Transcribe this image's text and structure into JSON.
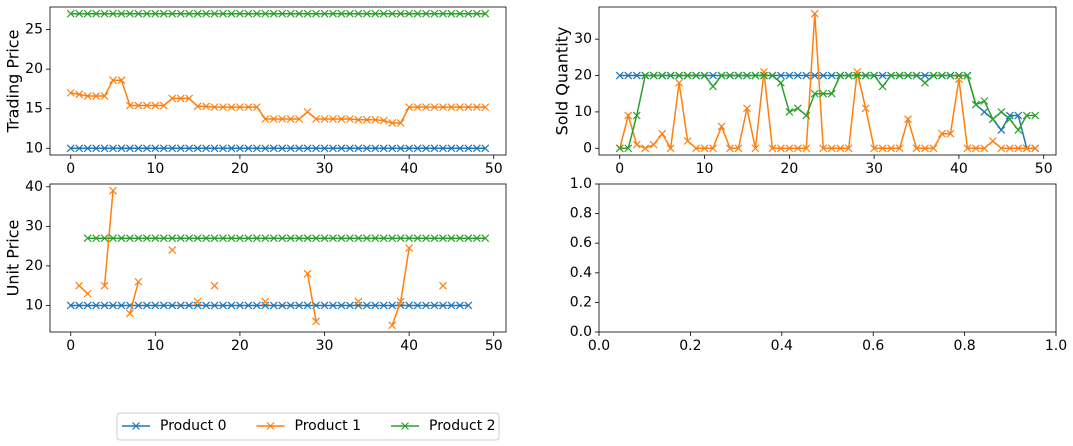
{
  "chart_data": [
    {
      "type": "line",
      "ylabel": "Trading Price",
      "xlim": [
        -2.45,
        51.45
      ],
      "ylim": [
        9.15,
        27.85
      ],
      "xticks": [
        0,
        10,
        20,
        30,
        40,
        50
      ],
      "yticks": [
        10,
        15,
        20,
        25
      ],
      "legend": "below",
      "series": [
        {
          "name": "Product 0",
          "color": "#1f77b4",
          "values": [
            10,
            10,
            10,
            10,
            10,
            10,
            10,
            10,
            10,
            10,
            10,
            10,
            10,
            10,
            10,
            10,
            10,
            10,
            10,
            10,
            10,
            10,
            10,
            10,
            10,
            10,
            10,
            10,
            10,
            10,
            10,
            10,
            10,
            10,
            10,
            10,
            10,
            10,
            10,
            10,
            10,
            10,
            10,
            10,
            10,
            10,
            10,
            10,
            10,
            10
          ]
        },
        {
          "name": "Product 1",
          "color": "#ff7f0e",
          "values": [
            17,
            16.8,
            16.6,
            16.6,
            16.6,
            18.6,
            18.6,
            15.4,
            15.4,
            15.4,
            15.4,
            15.4,
            16.3,
            16.3,
            16.3,
            15.3,
            15.3,
            15.2,
            15.2,
            15.2,
            15.2,
            15.2,
            15.2,
            13.7,
            13.7,
            13.7,
            13.7,
            13.7,
            14.6,
            13.7,
            13.7,
            13.7,
            13.7,
            13.7,
            13.6,
            13.6,
            13.6,
            13.5,
            13.2,
            13.2,
            15.2,
            15.2,
            15.2,
            15.2,
            15.2,
            15.2,
            15.2,
            15.2,
            15.2,
            15.2
          ]
        },
        {
          "name": "Product 2",
          "color": "#2ca02c",
          "values": [
            27,
            27,
            27,
            27,
            27,
            27,
            27,
            27,
            27,
            27,
            27,
            27,
            27,
            27,
            27,
            27,
            27,
            27,
            27,
            27,
            27,
            27,
            27,
            27,
            27,
            27,
            27,
            27,
            27,
            27,
            27,
            27,
            27,
            27,
            27,
            27,
            27,
            27,
            27,
            27,
            27,
            27,
            27,
            27,
            27,
            27,
            27,
            27,
            27,
            27
          ]
        }
      ]
    },
    {
      "type": "line",
      "ylabel": "Sold Quantity",
      "xlim": [
        -2.45,
        51.45
      ],
      "ylim": [
        -1.85,
        38.85
      ],
      "xticks": [
        0,
        10,
        20,
        30,
        40,
        50
      ],
      "yticks": [
        0,
        10,
        20,
        30
      ],
      "series": [
        {
          "color": "#1f77b4",
          "values": [
            20,
            20,
            20,
            20,
            20,
            20,
            20,
            20,
            20,
            20,
            20,
            20,
            20,
            20,
            20,
            20,
            20,
            20,
            20,
            20,
            20,
            20,
            20,
            20,
            20,
            20,
            20,
            20,
            20,
            20,
            20,
            20,
            20,
            20,
            20,
            20,
            20,
            20,
            20,
            20,
            20,
            20,
            12,
            10,
            8,
            5,
            9,
            9,
            0,
            0
          ]
        },
        {
          "color": "#ff7f0e",
          "values": [
            0,
            9,
            1,
            0,
            1,
            4,
            0,
            18,
            2,
            0,
            0,
            0,
            6,
            0,
            0,
            11,
            0,
            21,
            0,
            0,
            0,
            0,
            0,
            37,
            0,
            0,
            0,
            0,
            21,
            11,
            0,
            0,
            0,
            0,
            8,
            0,
            0,
            0,
            4,
            4,
            19,
            0,
            0,
            0,
            2,
            0,
            0,
            0,
            0,
            0
          ]
        },
        {
          "color": "#2ca02c",
          "values": [
            0,
            0,
            9,
            20,
            20,
            20,
            20,
            20,
            20,
            20,
            20,
            17,
            20,
            20,
            20,
            20,
            20,
            20,
            20,
            18,
            10,
            11,
            9,
            15,
            15,
            15,
            20,
            20,
            20,
            20,
            20,
            17,
            20,
            20,
            20,
            20,
            18,
            20,
            20,
            20,
            20,
            20,
            12,
            13,
            8,
            10,
            8,
            5,
            9,
            9
          ]
        }
      ]
    },
    {
      "type": "line",
      "ylabel": "Unit Price",
      "xlim": [
        -2.45,
        51.45
      ],
      "ylim": [
        3.3,
        40.7
      ],
      "xticks": [
        0,
        10,
        20,
        30,
        40,
        50
      ],
      "yticks": [
        10,
        20,
        30,
        40
      ],
      "series": [
        {
          "color": "#1f77b4",
          "values": [
            10,
            10,
            10,
            10,
            10,
            10,
            10,
            10,
            10,
            10,
            10,
            10,
            10,
            10,
            10,
            10,
            10,
            10,
            10,
            10,
            10,
            10,
            10,
            10,
            10,
            10,
            10,
            10,
            10,
            10,
            10,
            10,
            10,
            10,
            10,
            10,
            10,
            10,
            10,
            10,
            10,
            10,
            10,
            10,
            10,
            10,
            10,
            10,
            null,
            null
          ]
        },
        {
          "color": "#ff7f0e",
          "values": [
            null,
            15,
            13,
            null,
            15,
            39,
            null,
            8,
            16,
            null,
            null,
            null,
            24,
            null,
            null,
            11,
            null,
            15,
            null,
            null,
            null,
            null,
            null,
            11,
            null,
            null,
            null,
            null,
            18,
            6,
            null,
            null,
            null,
            null,
            11,
            null,
            null,
            null,
            5,
            11,
            24.5,
            null,
            null,
            null,
            15,
            null,
            null,
            null,
            null,
            null
          ]
        },
        {
          "color": "#2ca02c",
          "values": [
            null,
            null,
            27,
            27,
            27,
            27,
            27,
            27,
            27,
            27,
            27,
            27,
            27,
            27,
            27,
            27,
            27,
            27,
            27,
            27,
            27,
            27,
            27,
            27,
            27,
            27,
            27,
            27,
            27,
            27,
            27,
            27,
            27,
            27,
            27,
            27,
            27,
            27,
            27,
            27,
            27,
            27,
            27,
            27,
            27,
            27,
            27,
            27,
            27,
            27
          ]
        }
      ]
    },
    {
      "type": "line",
      "xlim": [
        0,
        1
      ],
      "ylim": [
        0,
        1
      ],
      "xticks": [
        {
          "value": 0,
          "label": "0.0"
        },
        {
          "value": 0.2,
          "label": "0.2"
        },
        {
          "value": 0.4,
          "label": "0.4"
        },
        {
          "value": 0.6,
          "label": "0.6"
        },
        {
          "value": 0.8,
          "label": "0.8"
        },
        {
          "value": 1,
          "label": "1.0"
        }
      ],
      "yticks": [
        {
          "value": 0,
          "label": "0.0"
        },
        {
          "value": 0.2,
          "label": "0.2"
        },
        {
          "value": 0.4,
          "label": "0.4"
        },
        {
          "value": 0.6,
          "label": "0.6"
        },
        {
          "value": 0.8,
          "label": "0.8"
        },
        {
          "value": 1,
          "label": "1.0"
        }
      ],
      "series": []
    }
  ]
}
